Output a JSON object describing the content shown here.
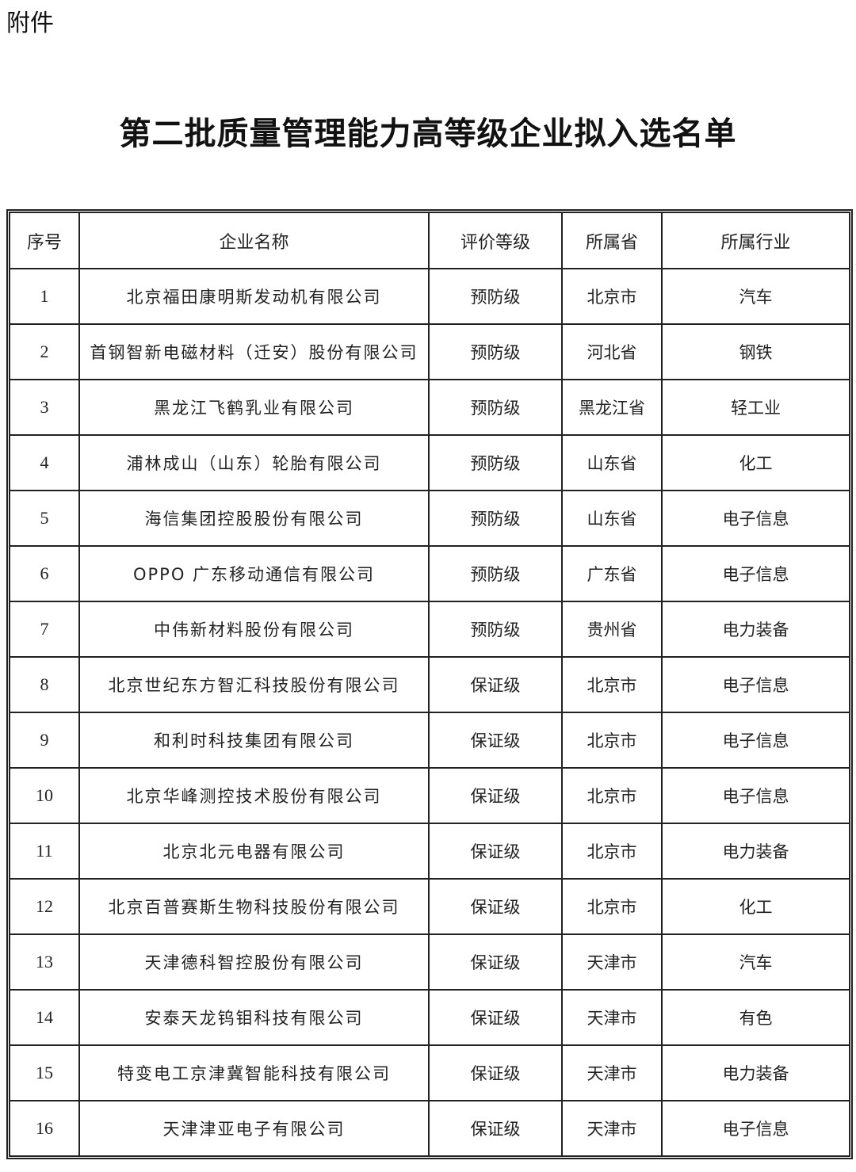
{
  "attachment_label": "附件",
  "title": "第二批质量管理能力高等级企业拟入选名单",
  "table": {
    "headers": [
      "序号",
      "企业名称",
      "评价等级",
      "所属省",
      "所属行业"
    ],
    "rows": [
      [
        "1",
        "北京福田康明斯发动机有限公司",
        "预防级",
        "北京市",
        "汽车"
      ],
      [
        "2",
        "首钢智新电磁材料（迁安）股份有限公司",
        "预防级",
        "河北省",
        "钢铁"
      ],
      [
        "3",
        "黑龙江飞鹤乳业有限公司",
        "预防级",
        "黑龙江省",
        "轻工业"
      ],
      [
        "4",
        "浦林成山（山东）轮胎有限公司",
        "预防级",
        "山东省",
        "化工"
      ],
      [
        "5",
        "海信集团控股股份有限公司",
        "预防级",
        "山东省",
        "电子信息"
      ],
      [
        "6",
        "OPPO 广东移动通信有限公司",
        "预防级",
        "广东省",
        "电子信息"
      ],
      [
        "7",
        "中伟新材料股份有限公司",
        "预防级",
        "贵州省",
        "电力装备"
      ],
      [
        "8",
        "北京世纪东方智汇科技股份有限公司",
        "保证级",
        "北京市",
        "电子信息"
      ],
      [
        "9",
        "和利时科技集团有限公司",
        "保证级",
        "北京市",
        "电子信息"
      ],
      [
        "10",
        "北京华峰测控技术股份有限公司",
        "保证级",
        "北京市",
        "电子信息"
      ],
      [
        "11",
        "北京北元电器有限公司",
        "保证级",
        "北京市",
        "电力装备"
      ],
      [
        "12",
        "北京百普赛斯生物科技股份有限公司",
        "保证级",
        "北京市",
        "化工"
      ],
      [
        "13",
        "天津德科智控股份有限公司",
        "保证级",
        "天津市",
        "汽车"
      ],
      [
        "14",
        "安泰天龙钨钼科技有限公司",
        "保证级",
        "天津市",
        "有色"
      ],
      [
        "15",
        "特变电工京津冀智能科技有限公司",
        "保证级",
        "天津市",
        "电力装备"
      ],
      [
        "16",
        "天津津亚电子有限公司",
        "保证级",
        "天津市",
        "电子信息"
      ]
    ]
  }
}
